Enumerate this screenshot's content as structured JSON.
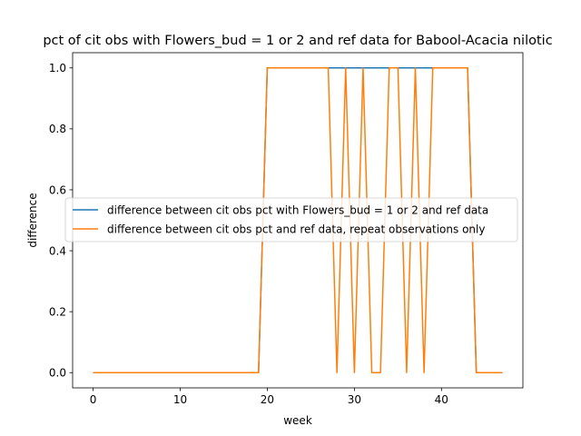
{
  "chart_data": {
    "type": "line",
    "title": "pct of cit obs with Flowers_bud = 1 or 2 and ref data for Babool-Acacia nilotic",
    "xlabel": "week",
    "ylabel": "difference",
    "xlim": [
      -2.35,
      49.35
    ],
    "ylim": [
      -0.05,
      1.05
    ],
    "xticks": [
      0,
      10,
      20,
      30,
      40
    ],
    "yticks": [
      0.0,
      0.2,
      0.4,
      0.6,
      0.8,
      1.0
    ],
    "xtick_labels": [
      "0",
      "10",
      "20",
      "30",
      "40"
    ],
    "ytick_labels": [
      "0.0",
      "0.2",
      "0.4",
      "0.6",
      "0.8",
      "1.0"
    ],
    "grid": false,
    "legend_position": "center-right",
    "x": [
      0,
      1,
      2,
      3,
      4,
      5,
      6,
      7,
      8,
      9,
      10,
      11,
      12,
      13,
      14,
      15,
      16,
      17,
      18,
      19,
      20,
      21,
      22,
      23,
      24,
      25,
      26,
      27,
      28,
      29,
      30,
      31,
      32,
      33,
      34,
      35,
      36,
      37,
      38,
      39,
      40,
      41,
      42,
      43,
      44,
      45,
      46,
      47
    ],
    "series": [
      {
        "name": "difference between cit obs pct with Flowers_bud = 1 or 2 and ref data",
        "color": "#1f77b4",
        "values": [
          0,
          0,
          0,
          0,
          0,
          0,
          0,
          0,
          0,
          0,
          0,
          0,
          0,
          0,
          0,
          0,
          0,
          0,
          0,
          0,
          1,
          1,
          1,
          1,
          1,
          1,
          1,
          1,
          1,
          1,
          1,
          1,
          1,
          1,
          1,
          1,
          1,
          1,
          1,
          1,
          1,
          1,
          1,
          1,
          0,
          0,
          0,
          0
        ]
      },
      {
        "name": "difference between cit obs pct and ref data, repeat observations only",
        "color": "#ff7f0e",
        "values": [
          0,
          0,
          0,
          0,
          0,
          0,
          0,
          0,
          0,
          0,
          0,
          0,
          0,
          0,
          0,
          0,
          0,
          0,
          0,
          0,
          1,
          1,
          1,
          1,
          1,
          1,
          1,
          1,
          0,
          1,
          0,
          1,
          0,
          0,
          1,
          1,
          0,
          1,
          0,
          1,
          1,
          1,
          1,
          1,
          0,
          0,
          0,
          0
        ]
      }
    ]
  }
}
